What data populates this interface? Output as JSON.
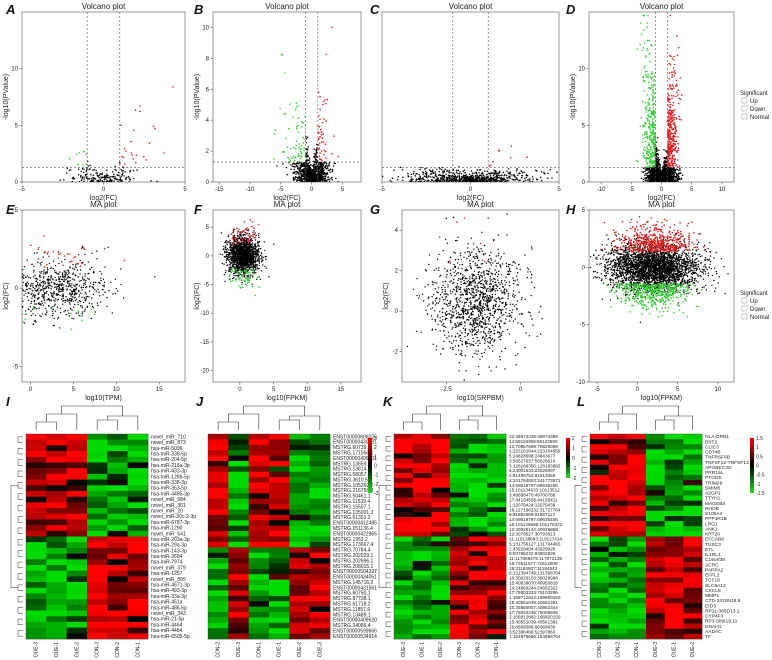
{
  "figure": {
    "panel_letters": [
      "A",
      "B",
      "C",
      "D",
      "E",
      "F",
      "G",
      "H",
      "I",
      "J",
      "K",
      "L"
    ]
  },
  "colors": {
    "up": "#e31a1c",
    "down": "#33cc33",
    "normal": "#000000",
    "heat_high": "#ff0000",
    "heat_mid": "#000000",
    "heat_low": "#22dd22"
  },
  "legend": {
    "title": "Significant",
    "items": [
      "Up",
      "Down",
      "Normal"
    ]
  },
  "chart_data": [
    {
      "panel": "A",
      "type": "scatter",
      "title": "Volcano plot",
      "xlabel": "log2(FC)",
      "ylabel": "-log10(PValue)",
      "xlim": [
        -5,
        5
      ],
      "ylim": [
        0,
        15
      ],
      "xticks": [
        -5,
        0,
        5
      ],
      "yticks": [
        0,
        5,
        10
      ],
      "vlines": [
        -1,
        1
      ],
      "hline": 1.3,
      "series": [
        {
          "class": "Up",
          "count": 25
        },
        {
          "class": "Down",
          "count": 10
        },
        {
          "class": "Normal",
          "count": 180
        }
      ]
    },
    {
      "panel": "B",
      "type": "scatter",
      "title": "Volcano plot",
      "xlabel": "log2(FC)",
      "ylabel": "-log10(PValue)",
      "xlim": [
        -16,
        8
      ],
      "ylim": [
        0,
        11
      ],
      "xticks": [
        -15,
        -10,
        -5,
        0,
        5
      ],
      "yticks": [
        0,
        2,
        4,
        6,
        8,
        10
      ],
      "vlines": [
        -1,
        1
      ],
      "hline": 1.3,
      "series": [
        {
          "class": "Up",
          "count": 50
        },
        {
          "class": "Down",
          "count": 70
        },
        {
          "class": "Normal",
          "count": 900
        }
      ]
    },
    {
      "panel": "C",
      "type": "scatter",
      "title": "Volcano plot",
      "xlabel": "log2(FC)",
      "ylabel": "",
      "xlim": [
        -5,
        5
      ],
      "ylim": [
        0,
        15
      ],
      "xticks": [
        -5,
        0,
        5
      ],
      "yticks": [],
      "vlines": [
        -1,
        1
      ],
      "hline": 1.3,
      "series": [
        {
          "class": "Up",
          "count": 8
        },
        {
          "class": "Down",
          "count": 0
        },
        {
          "class": "Normal",
          "count": 700
        }
      ]
    },
    {
      "panel": "D",
      "type": "scatter",
      "title": "Volcano plot",
      "xlabel": "log2(FC)",
      "ylabel": "-log10(PValue)",
      "xlim": [
        -12,
        12
      ],
      "ylim": [
        0,
        15
      ],
      "xticks": [
        -10,
        -5,
        0,
        5,
        10
      ],
      "yticks": [
        0,
        5,
        10
      ],
      "vlines": [
        -1,
        1
      ],
      "hline": 1.3,
      "series": [
        {
          "class": "Up",
          "count": 350
        },
        {
          "class": "Down",
          "count": 350
        },
        {
          "class": "Normal",
          "count": 1500
        }
      ]
    },
    {
      "panel": "E",
      "type": "scatter",
      "title": "MA plot",
      "xlabel": "log10(TPM)",
      "ylabel": "log2(FC)",
      "xlim": [
        -1,
        18
      ],
      "ylim": [
        -6,
        5
      ],
      "xticks": [
        0,
        5,
        10,
        15
      ],
      "yticks": [
        -5,
        0,
        5
      ],
      "series": [
        {
          "class": "Up",
          "count": 30
        },
        {
          "class": "Down",
          "count": 12
        },
        {
          "class": "Normal",
          "count": 700
        }
      ]
    },
    {
      "panel": "F",
      "type": "scatter",
      "title": "MA plot",
      "xlabel": "log10(FPKM)",
      "ylabel": "log2(FC)",
      "xlim": [
        -4,
        18
      ],
      "ylim": [
        -22,
        8
      ],
      "xticks": [
        0,
        5,
        10,
        15
      ],
      "yticks": [
        -20,
        -15,
        -10,
        -5,
        0,
        5
      ],
      "series": [
        {
          "class": "Up",
          "count": 50
        },
        {
          "class": "Down",
          "count": 70
        },
        {
          "class": "Normal",
          "count": 1500
        }
      ]
    },
    {
      "panel": "G",
      "type": "scatter",
      "title": "MA plot",
      "xlabel": "log10(SRPBM)",
      "ylabel": "log2(FC)",
      "xlim": [
        -4,
        1.3
      ],
      "ylim": [
        -3.5,
        5
      ],
      "xticks": [
        -2.5,
        0.0
      ],
      "yticks": [
        -2,
        0,
        2,
        4
      ],
      "series": [
        {
          "class": "Up",
          "count": 10
        },
        {
          "class": "Down",
          "count": 0
        },
        {
          "class": "Normal",
          "count": 1200
        }
      ]
    },
    {
      "panel": "H",
      "type": "scatter",
      "title": "MA plot",
      "xlabel": "log10(FPKM)",
      "ylabel": "",
      "xlim": [
        -6,
        12
      ],
      "ylim": [
        -10,
        5
      ],
      "xticks": [
        -5,
        0,
        5,
        10
      ],
      "yticks": [
        -10,
        -5,
        0,
        5
      ],
      "series": [
        {
          "class": "Up",
          "count": 500
        },
        {
          "class": "Down",
          "count": 500
        },
        {
          "class": "Normal",
          "count": 3000
        }
      ]
    },
    {
      "panel": "I",
      "type": "heatmap",
      "columns": [
        "OUE-3",
        "OUE-1",
        "OUE-2",
        "CON-3",
        "CON-2",
        "CON-1"
      ],
      "rows": [
        "novel_miR_710",
        "novel_miR_873",
        "hsa-miR-5096",
        "hsa-miR-338-5p",
        "hsa-miR-204-5p",
        "hsa-miR-218a-3p",
        "hsa-miR-433-3p",
        "hsa-miR-126b-5p",
        "hsa-miR-338-3p",
        "hsa-miR-363-5p",
        "hsa-miR-4485-3p",
        "novel_miR_684",
        "novel_miR_301",
        "novel_miR_20",
        "novel_miR-30c-2-3p",
        "hsa-miR-6787-3p",
        "hsa-miR-1290",
        "novel_miR_641",
        "hsa-miR-203a-3p",
        "hsa-miR-29a-3p",
        "hsa-miR-143-3p",
        "hsa-miR-3684",
        "hsa-miR-7974",
        "novel_miR_379",
        "hsa-miR-1257",
        "novel_miR_895",
        "hsa-miR-4671-3p",
        "hsa-miR-493-3p",
        "hsa-miR-33a-3p",
        "hsa-miR-451a",
        "hsa-miR-486-5p",
        "novel_miR_342",
        "hsa-miR-21-5p",
        "hsa-miR-4464",
        "hsa-miR-4484",
        "hsa-miR-6505-5p"
      ],
      "legend_ticks": [
        "2",
        "1",
        "0",
        "-1",
        "-2"
      ]
    },
    {
      "panel": "J",
      "type": "heatmap",
      "columns": [
        "CON-2",
        "OUE-3",
        "CON-1",
        "OUE-1",
        "OUE-2",
        "OUE-3"
      ],
      "rows": [
        "ENST00000606026",
        "ENST00000430631",
        "MSTRG.60739.1",
        "MSTRG.171056.1",
        "ENST00000499601",
        "MSTRG.13659.3",
        "MSTRG.13814.2",
        "MSTRG.58057.6",
        "MSTRG.3610.5",
        "MSTRG.105262.2",
        "MSTRG.216756.4",
        "MSTRG.50461.1",
        "MSTRG.11539.4",
        "MSTRG.15507.1",
        "MSTRG.135001.3",
        "MSTRG.61301.2",
        "ENST00000412485",
        "MSTRG.151136.4",
        "ENST00000422965",
        "MSTRG.1953.2",
        "MSTRG.173667.4",
        "MSTRG.70784.4",
        "MSTRG.202029.1",
        "MSTRG.202696.1",
        "MSTRG.208015.1",
        "ENST00000504327",
        "ENST00000434051",
        "MSTRG.145716.2",
        "ENST00000431561",
        "MSTRG.60750.1",
        "MSTRG.87738.1",
        "MSTRG.61718.2",
        "MSTRG.11857.6",
        "MSTRG.13489.1",
        "ENST00000409620",
        "MSTRG.34086.4",
        "ENST00000599666",
        "ENST00000534914"
      ],
      "legend_ticks": [
        "3",
        "2",
        "1",
        "0",
        "-1",
        "-2",
        "-3"
      ]
    },
    {
      "panel": "K",
      "type": "heatmap",
      "columns": [
        "OUE-3",
        "OUE-1",
        "OUE-2",
        "CON-3",
        "CON-2",
        "CON-1"
      ],
      "rows": [
        "22:46972335:46974399",
        "14:69118368:69122580",
        "12:70857699:70829089",
        "1:223161844:223164959",
        "5:24828698:24843677",
        "3:56627037:56628614",
        "3:128166356:128183682",
        "5:24001533:24026097",
        "2:81495754:81512059",
        "2:241764653:241773571",
        "14:69618797:69635406",
        "15:101134633:10113512",
        "3:49688470:49700788",
        "17:44154558:44155411",
        "1:12079424:12079439",
        "16:127196232:31727764",
        "9:81892569:81887113",
        "14:69618797:69635406",
        "15:101128566:101170322",
        "12:40926142:40926859",
        "12:3079527:30793013",
        "11:110138683:110127414",
        "5:131756127:131794465",
        "1:43929494:43929926",
        "9:93796232:93902839",
        "11:117869475:117872139",
        "16:72611577:72612008",
        "19:31184507:31184543",
        "6:131394749:131398704",
        "10:30026103:30029998",
        "15:40939070:40950818",
        "14:24660244:24662322",
        "17:75003333:75103296",
        "1:169712842:169800150",
        "15:40551039:40561381",
        "10:35850007:40852344",
        "17:75033335:75009945",
        "2:166812882:166820150",
        "15:40551039:40561381",
        "16:6608589:66069630",
        "3:52396466:52397863",
        "1:154879686:154896764"
      ],
      "legend_ticks": [
        "2",
        "1",
        "0",
        "-1",
        "-2"
      ]
    },
    {
      "panel": "L",
      "type": "heatmap",
      "columns": [
        "CON-3",
        "CON-2",
        "CON-1",
        "OUE-3",
        "OUE-1",
        "OUE-2"
      ],
      "rows": [
        "HLA-DRB1",
        "BST2",
        "CLIC3",
        "CD74B",
        "TNFRSF6B",
        "TNFSF12-TNFSF13",
        "APOBEC3G",
        "PRR15L",
        "PTGDS",
        "TRIM29",
        "SMIM5",
        "A2GP1",
        "TTYH1",
        "MAGEB4",
        "RHOB",
        "S100A4",
        "PPP1R1B",
        "LRG1",
        "ANK1",
        "KRT20",
        "EFCAB8",
        "TUSC3",
        "ETL",
        "IL1RL1",
        "C19orf38",
        "ACRC",
        "PAPPA2",
        "EFFL2",
        "TCF19",
        "SLC6A12",
        "CXCL8",
        "MMP1",
        "CTD-2410N18.5",
        "EID3",
        "RP11-385D13.1",
        "CYP4F3",
        "RP3-509I19.11",
        "DNAH1",
        "AADAC",
        "TF"
      ],
      "legend_ticks": [
        "1.5",
        "1",
        "0.5",
        "0",
        "-0.5",
        "-1",
        "-1.5"
      ]
    }
  ]
}
